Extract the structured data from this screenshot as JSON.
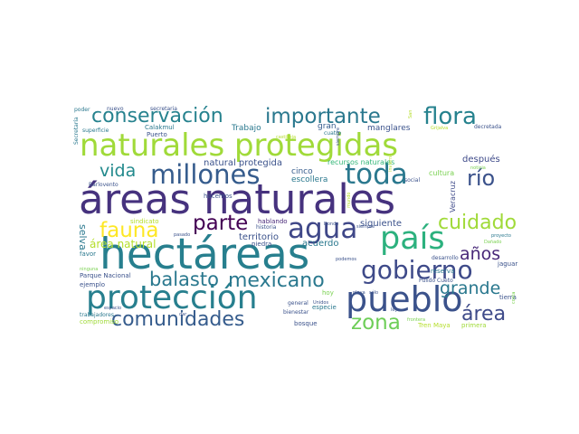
{
  "colors": {
    "background": "#ffffff",
    "palette": [
      "#440154",
      "#46327e",
      "#365c8d",
      "#277f8e",
      "#1fa187",
      "#4ac16d",
      "#a0da39",
      "#fde725"
    ]
  },
  "words": [
    {
      "text": "áreas naturales",
      "color": "#46327e"
    },
    {
      "text": "hectáreas",
      "color": "#277f8e"
    },
    {
      "text": "naturales protegidas",
      "color": "#a0da39"
    },
    {
      "text": "protección",
      "color": "#277f8e"
    },
    {
      "text": "pueblo",
      "color": "#3b528b"
    },
    {
      "text": "país",
      "color": "#2cb17e"
    },
    {
      "text": "millones",
      "color": "#365c8d"
    },
    {
      "text": "toda",
      "color": "#2a788e"
    },
    {
      "text": "agua",
      "color": "#3f4788"
    },
    {
      "text": "gobierno",
      "color": "#3e4a89"
    },
    {
      "text": "conservación",
      "color": "#26828e"
    },
    {
      "text": "importante",
      "color": "#2a788e"
    },
    {
      "text": "flora",
      "color": "#26828e"
    },
    {
      "text": "comunidades",
      "color": "#365c8d"
    },
    {
      "text": "zona",
      "color": "#6ece58"
    },
    {
      "text": "fauna",
      "color": "#fde725"
    },
    {
      "text": "parte",
      "color": "#440154"
    },
    {
      "text": "mexicano",
      "color": "#2a788e"
    },
    {
      "text": "área",
      "color": "#3e4a89"
    },
    {
      "text": "balasto",
      "color": "#2a788e"
    },
    {
      "text": "río",
      "color": "#3b528b"
    },
    {
      "text": "cuidado",
      "color": "#a0da39"
    },
    {
      "text": "años",
      "color": "#482878"
    },
    {
      "text": "grande",
      "color": "#2a788e"
    },
    {
      "text": "vida",
      "color": "#238a8d"
    },
    {
      "text": "área natural",
      "color": "#b5de2b"
    },
    {
      "text": "territorio",
      "color": "#3b528b"
    },
    {
      "text": "selva",
      "color": "#2a788e"
    },
    {
      "text": "natural protegida",
      "color": "#3b528b"
    },
    {
      "text": "recursos naturales",
      "color": "#35b779"
    },
    {
      "text": "siguiente",
      "color": "#3b528b"
    },
    {
      "text": "después",
      "color": "#3e4a89"
    },
    {
      "text": "acuerdo",
      "color": "#2a788e"
    },
    {
      "text": "cinco",
      "color": "#365c8d"
    },
    {
      "text": "escollera",
      "color": "#2a788e"
    },
    {
      "text": "manglares",
      "color": "#3b528b"
    },
    {
      "text": "Trabajo",
      "color": "#2a788e"
    },
    {
      "text": "gran",
      "color": "#365c8d"
    },
    {
      "text": "cultura",
      "color": "#7ad151"
    },
    {
      "text": "Veracruz",
      "color": "#3e4a89"
    },
    {
      "text": "Calakmul",
      "color": "#2a788e"
    },
    {
      "text": "Puerto",
      "color": "#3b528b"
    },
    {
      "text": "cuatro",
      "color": "#2a788e"
    },
    {
      "text": "hacemos",
      "color": "#3b528b"
    },
    {
      "text": "sindicato",
      "color": "#b5de2b"
    },
    {
      "text": "piedra",
      "color": "#3b528b"
    },
    {
      "text": "hablando",
      "color": "#482878"
    },
    {
      "text": "historia",
      "color": "#3b528b"
    },
    {
      "text": "Parque Nacional",
      "color": "#3b528b"
    },
    {
      "text": "ejemplo",
      "color": "#3b528b"
    },
    {
      "text": "favor",
      "color": "#2a788e"
    },
    {
      "text": "compromiso",
      "color": "#a0da39"
    },
    {
      "text": "especie",
      "color": "#2a788e"
    },
    {
      "text": "hoy",
      "color": "#7ad151"
    },
    {
      "text": "bienestar",
      "color": "#3b528b"
    },
    {
      "text": "bosque",
      "color": "#3b528b"
    },
    {
      "text": "Tren Maya",
      "color": "#b5de2b"
    },
    {
      "text": "primera",
      "color": "#a0da39"
    },
    {
      "text": "tierra",
      "color": "#3b528b"
    },
    {
      "text": "jaguar",
      "color": "#3b528b"
    },
    {
      "text": "reserva",
      "color": "#2a788e"
    },
    {
      "text": "desarrollo",
      "color": "#3b528b"
    },
    {
      "text": "Pulido Cueto",
      "color": "#3b528b"
    },
    {
      "text": "social",
      "color": "#3b528b"
    },
    {
      "text": "decretada",
      "color": "#3b528b"
    },
    {
      "text": "Secretaría",
      "color": "#2a788e"
    },
    {
      "text": "superficie",
      "color": "#2a788e"
    },
    {
      "text": "Barlovento",
      "color": "#3b528b"
    },
    {
      "text": "poder",
      "color": "#2a788e"
    },
    {
      "text": "nuevo",
      "color": "#3b528b"
    },
    {
      "text": "secretaria",
      "color": "#3b528b"
    },
    {
      "text": "trabajadores",
      "color": "#2a788e"
    },
    {
      "text": "espacio",
      "color": "#3b528b"
    },
    {
      "text": "general",
      "color": "#3b528b"
    },
    {
      "text": "playa",
      "color": "#3b528b"
    },
    {
      "text": "sólo",
      "color": "#3b528b"
    },
    {
      "text": "frontera",
      "color": "#7ad151"
    },
    {
      "text": "siempre",
      "color": "#3b528b"
    },
    {
      "text": "podemos",
      "color": "#3b528b"
    },
    {
      "text": "pasado",
      "color": "#3b528b"
    },
    {
      "text": "ninguna",
      "color": "#7ad151"
    },
    {
      "text": "Donde",
      "color": "#3b528b"
    },
    {
      "text": "Unidos",
      "color": "#3b528b"
    },
    {
      "text": "ley",
      "color": "#3b528b"
    },
    {
      "text": "dar",
      "color": "#3b528b"
    },
    {
      "text": "proyecto",
      "color": "#2a788e"
    },
    {
      "text": "Dañado",
      "color": "#7ad151"
    },
    {
      "text": "San",
      "color": "#b5de2b"
    },
    {
      "text": "Grijalva",
      "color": "#b5de2b"
    },
    {
      "text": "invierno",
      "color": "#b5de2b"
    },
    {
      "text": "mundo",
      "color": "#b5de2b"
    },
    {
      "text": "noticia",
      "color": "#7ad151"
    },
    {
      "text": "costa",
      "color": "#7ad151"
    },
    {
      "text": "castilleja",
      "color": "#b5de2b"
    },
    {
      "text": "siempre",
      "color": "#3b528b"
    }
  ]
}
